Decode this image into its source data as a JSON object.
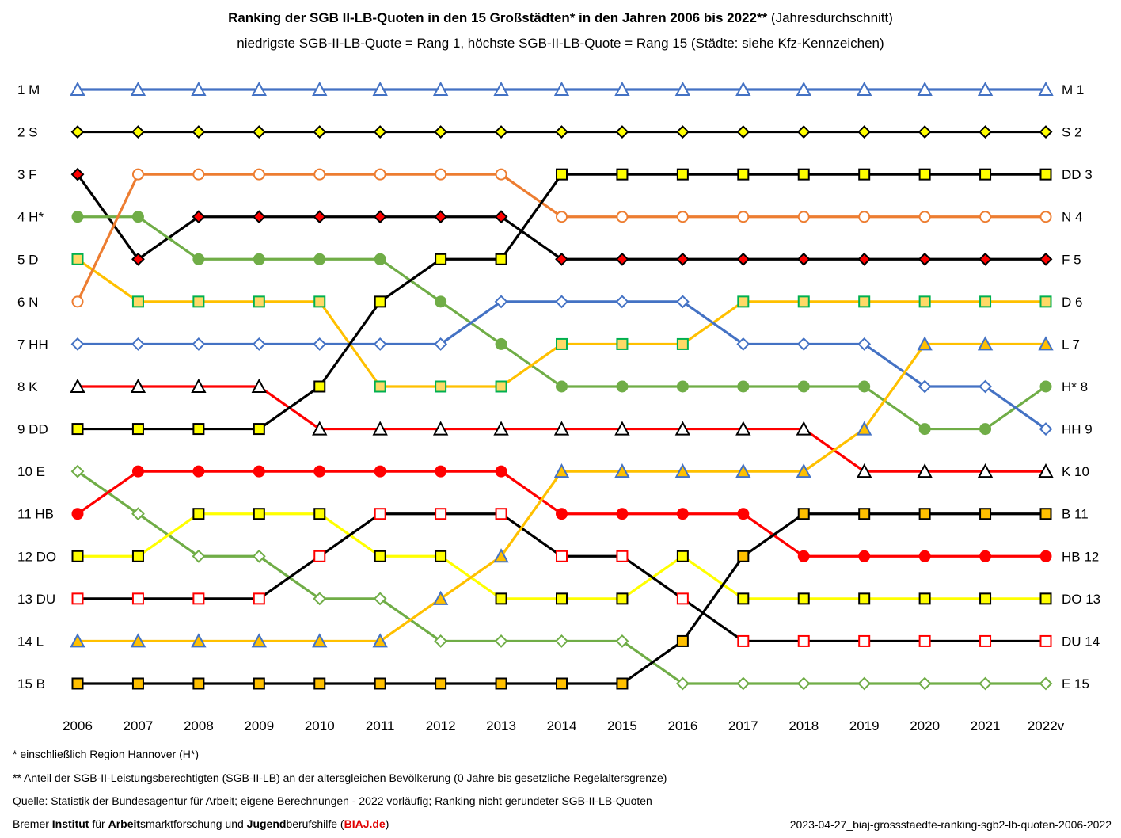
{
  "header": {
    "title_bold": "Ranking der SGB II-LB-Quoten in den 15 Großstädten* in den Jahren 2006 bis 2022**",
    "title_rest": " (Jahresdurchschnitt)",
    "subtitle": "niedrigste SGB-II-LB-Quote = Rang 1, höchste SGB-II-LB-Quote = Rang 15 (Städte: siehe Kfz-Kennzeichen)"
  },
  "footer": {
    "note1": "*  einschließlich Region Hannover (H*)",
    "note2": "** Anteil der SGB-II-Leistungsberechtigten (SGB-II-LB) an der altersgleichen Bevölkerung (0 Jahre bis gesetzliche Regelaltersgrenze)",
    "note3": "Quelle: Statistik der Bundesagentur für Arbeit; eigene Berechnungen - 2022 vorläufig; Ranking nicht gerundeter SGB-II-LB-Quoten",
    "org_parts": [
      "Bremer ",
      "Institut",
      " für ",
      "Arbeit",
      "smarktforschung und ",
      "Jugend",
      "berufshilfe (",
      "BIAJ.de",
      ")"
    ],
    "fileref": "2023-04-27_biaj-grossstaedte-ranking-sgb2-lb-quoten-2006-2022"
  },
  "chart_data": {
    "type": "line",
    "title": "Ranking der SGB II-LB-Quoten in den 15 Großstädten* in den Jahren 2006 bis 2022** (Jahresdurchschnitt)",
    "subtitle": "niedrigste SGB-II-LB-Quote = Rang 1, höchste SGB-II-LB-Quote = Rang 15 (Städte: siehe Kfz-Kennzeichen)",
    "x": [
      "2006",
      "2007",
      "2008",
      "2009",
      "2010",
      "2011",
      "2012",
      "2013",
      "2014",
      "2015",
      "2016",
      "2017",
      "2018",
      "2019",
      "2020",
      "2021",
      "2022v"
    ],
    "ylim": [
      1,
      15
    ],
    "y_inverted": true,
    "grid": false,
    "left_labels": [
      "1   M",
      "2   S",
      "3   F",
      "4  H*",
      "5   D",
      "6   N",
      "7 HH",
      "8   K",
      "9 DD",
      "10   E",
      "11 HB",
      "12 DO",
      "13 DU",
      "14   L",
      "15   B"
    ],
    "right_labels": [
      "M 1",
      "S 2",
      "DD 3",
      "N 4",
      "F 5",
      "D 6",
      "L 7",
      "H* 8",
      "HH 9",
      "K 10",
      "B 11",
      "HB 12",
      "DO 13",
      "DU 14",
      "E 15"
    ],
    "series": [
      {
        "name": "M",
        "color": "#4472c4",
        "marker": "triangle-open",
        "marker_fill": "#ffffff",
        "marker_stroke": "#4472c4",
        "values": [
          1,
          1,
          1,
          1,
          1,
          1,
          1,
          1,
          1,
          1,
          1,
          1,
          1,
          1,
          1,
          1,
          1
        ]
      },
      {
        "name": "S",
        "color": "#000000",
        "marker": "diamond",
        "marker_fill": "#ffff00",
        "marker_stroke": "#000000",
        "values": [
          2,
          2,
          2,
          2,
          2,
          2,
          2,
          2,
          2,
          2,
          2,
          2,
          2,
          2,
          2,
          2,
          2
        ]
      },
      {
        "name": "F",
        "color": "#000000",
        "marker": "diamond",
        "marker_fill": "#ff0000",
        "marker_stroke": "#000000",
        "values": [
          3,
          5,
          4,
          4,
          4,
          4,
          4,
          4,
          5,
          5,
          5,
          5,
          5,
          5,
          5,
          5,
          5
        ]
      },
      {
        "name": "H*",
        "color": "#70ad47",
        "marker": "circle",
        "marker_fill": "#70ad47",
        "marker_stroke": "#70ad47",
        "values": [
          4,
          4,
          5,
          5,
          5,
          5,
          6,
          7,
          8,
          8,
          8,
          8,
          8,
          8,
          9,
          9,
          8
        ]
      },
      {
        "name": "D",
        "color": "#ffc000",
        "marker": "square",
        "marker_fill": "#ffd966",
        "marker_stroke": "#00b050",
        "values": [
          5,
          6,
          6,
          6,
          6,
          8,
          8,
          8,
          7,
          7,
          7,
          6,
          6,
          6,
          6,
          6,
          6
        ]
      },
      {
        "name": "N",
        "color": "#ed7d31",
        "marker": "circle-open",
        "marker_fill": "#ffffff",
        "marker_stroke": "#ed7d31",
        "values": [
          6,
          3,
          3,
          3,
          3,
          3,
          3,
          3,
          4,
          4,
          4,
          4,
          4,
          4,
          4,
          4,
          4
        ]
      },
      {
        "name": "HH",
        "color": "#4472c4",
        "marker": "diamond-open",
        "marker_fill": "#ffffff",
        "marker_stroke": "#4472c4",
        "values": [
          7,
          7,
          7,
          7,
          7,
          7,
          7,
          6,
          6,
          6,
          6,
          7,
          7,
          7,
          8,
          8,
          9
        ]
      },
      {
        "name": "K",
        "color": "#ff0000",
        "marker": "triangle-open",
        "marker_fill": "#ffffff",
        "marker_stroke": "#000000",
        "values": [
          8,
          8,
          8,
          8,
          9,
          9,
          9,
          9,
          9,
          9,
          9,
          9,
          9,
          10,
          10,
          10,
          10
        ]
      },
      {
        "name": "DD",
        "color": "#000000",
        "marker": "square",
        "marker_fill": "#ffff00",
        "marker_stroke": "#000000",
        "values": [
          9,
          9,
          9,
          9,
          8,
          6,
          5,
          5,
          3,
          3,
          3,
          3,
          3,
          3,
          3,
          3,
          3
        ]
      },
      {
        "name": "E",
        "color": "#70ad47",
        "marker": "diamond-open",
        "marker_fill": "#ffffff",
        "marker_stroke": "#70ad47",
        "values": [
          10,
          11,
          12,
          12,
          13,
          13,
          14,
          14,
          14,
          14,
          15,
          15,
          15,
          15,
          15,
          15,
          15
        ]
      },
      {
        "name": "HB",
        "color": "#ff0000",
        "marker": "circle",
        "marker_fill": "#ff0000",
        "marker_stroke": "#ff0000",
        "values": [
          11,
          10,
          10,
          10,
          10,
          10,
          10,
          10,
          11,
          11,
          11,
          11,
          12,
          12,
          12,
          12,
          12
        ]
      },
      {
        "name": "DO",
        "color": "#ffff00",
        "marker": "square",
        "marker_fill": "#ffff00",
        "marker_stroke": "#000000",
        "values": [
          12,
          12,
          11,
          11,
          11,
          12,
          12,
          13,
          13,
          13,
          12,
          13,
          13,
          13,
          13,
          13,
          13
        ]
      },
      {
        "name": "DU",
        "color": "#000000",
        "marker": "square-open",
        "marker_fill": "#ffffff",
        "marker_stroke": "#ff0000",
        "values": [
          13,
          13,
          13,
          13,
          12,
          11,
          11,
          11,
          12,
          12,
          13,
          14,
          14,
          14,
          14,
          14,
          14
        ]
      },
      {
        "name": "L",
        "color": "#ffc000",
        "marker": "triangle",
        "marker_fill": "#ffc000",
        "marker_stroke": "#4472c4",
        "values": [
          14,
          14,
          14,
          14,
          14,
          14,
          13,
          12,
          10,
          10,
          10,
          10,
          10,
          9,
          7,
          7,
          7
        ]
      },
      {
        "name": "B",
        "color": "#000000",
        "marker": "square",
        "marker_fill": "#ffc000",
        "marker_stroke": "#000000",
        "values": [
          15,
          15,
          15,
          15,
          15,
          15,
          15,
          15,
          15,
          15,
          14,
          12,
          11,
          11,
          11,
          11,
          11
        ]
      }
    ]
  }
}
